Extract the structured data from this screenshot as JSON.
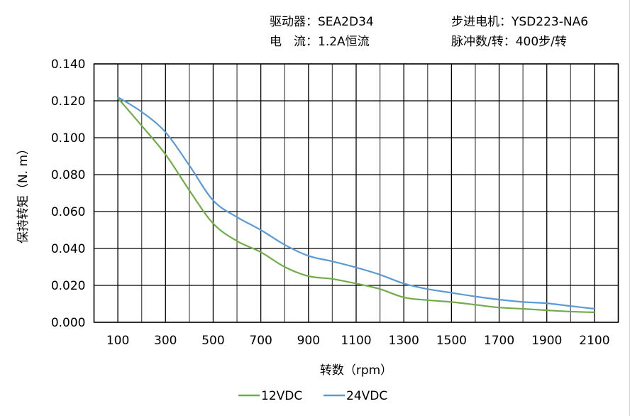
{
  "header": {
    "driver": "驱动器：SEA2D34",
    "current": "电　流：1.2A恒流",
    "motor": "步进电机：YSD223-NA6",
    "pulses": "脉冲数/转：400步/转"
  },
  "chart_data": {
    "type": "line",
    "xlabel": "转数（rpm）",
    "ylabel": "保持转矩（N. m）",
    "xlim": [
      0,
      2200
    ],
    "ylim": [
      0,
      0.14
    ],
    "grid": true,
    "legend_position": "bottom",
    "x_ticks": [
      "100",
      "300",
      "500",
      "700",
      "900",
      "1100",
      "1300",
      "1500",
      "1700",
      "1900",
      "2100"
    ],
    "y_ticks": [
      "0.000",
      "0.020",
      "0.040",
      "0.060",
      "0.080",
      "0.100",
      "0.120",
      "0.140"
    ],
    "x": [
      100,
      200,
      300,
      400,
      500,
      600,
      700,
      800,
      900,
      1000,
      1100,
      1200,
      1300,
      1400,
      1500,
      1600,
      1700,
      1800,
      1900,
      2000,
      2100
    ],
    "series": [
      {
        "name": "12VDC",
        "color": "#70ad47",
        "values": [
          0.1215,
          0.1065,
          0.091,
          0.0715,
          0.0535,
          0.044,
          0.038,
          0.03,
          0.025,
          0.0235,
          0.021,
          0.018,
          0.0135,
          0.012,
          0.011,
          0.0095,
          0.008,
          0.0073,
          0.0065,
          0.0058,
          0.0054
        ]
      },
      {
        "name": "24VDC",
        "color": "#5b9bd5",
        "values": [
          0.122,
          0.114,
          0.103,
          0.085,
          0.066,
          0.057,
          0.05,
          0.042,
          0.036,
          0.033,
          0.0297,
          0.0258,
          0.021,
          0.018,
          0.016,
          0.014,
          0.0123,
          0.011,
          0.0103,
          0.0088,
          0.0073
        ]
      }
    ]
  }
}
